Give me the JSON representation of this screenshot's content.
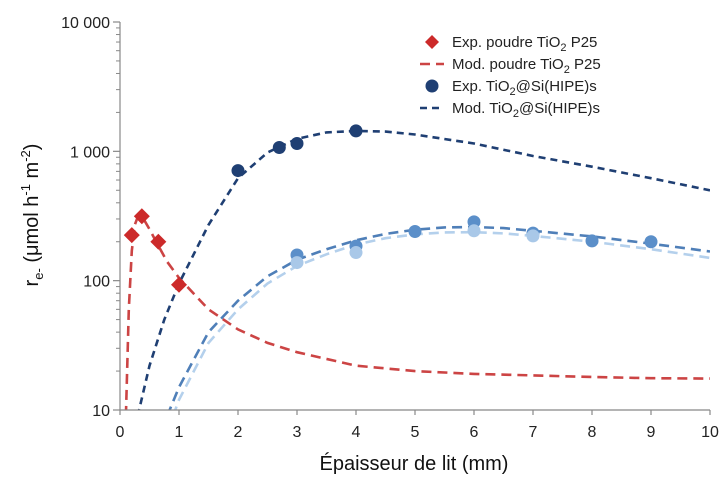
{
  "chart_data": {
    "type": "scatter",
    "title": "",
    "xlabel": "Épaisseur de lit (mm)",
    "ylabel": {
      "main": "r",
      "sub": "e-",
      "unit_open": " (μmol h",
      "sup1": "-1",
      "unit_mid": " m",
      "sup2": "-2",
      "unit_close": ")"
    },
    "xlim": [
      0,
      10
    ],
    "ylim": [
      10,
      10000
    ],
    "y_scale": "log",
    "x_ticks": [
      "0",
      "1",
      "2",
      "3",
      "4",
      "5",
      "6",
      "7",
      "8",
      "9",
      "10"
    ],
    "y_ticks": [
      {
        "value": 10,
        "label": "10"
      },
      {
        "value": 100,
        "label": "100"
      },
      {
        "value": 1000,
        "label": "1 000"
      },
      {
        "value": 10000,
        "label": "10 000"
      }
    ],
    "grid": false,
    "legend_position": "top-right",
    "legend": [
      {
        "kind": "marker",
        "shape": "diamond",
        "color": "#cc2a2a",
        "parts": [
          {
            "t": "Exp. poudre TiO"
          },
          {
            "t": "2",
            "sub": true
          },
          {
            "t": " P25"
          }
        ]
      },
      {
        "kind": "line",
        "color": "#cc4444",
        "dash": "long",
        "parts": [
          {
            "t": "Mod. poudre TiO"
          },
          {
            "t": "2",
            "sub": true
          },
          {
            "t": " P25"
          }
        ]
      },
      {
        "kind": "marker",
        "shape": "circle",
        "color": "#1f3f73",
        "parts": [
          {
            "t": "Exp. TiO"
          },
          {
            "t": "2",
            "sub": true
          },
          {
            "t": "@Si(HIPE)s"
          }
        ]
      },
      {
        "kind": "line",
        "color": "#1f3f73",
        "dash": "short",
        "parts": [
          {
            "t": "Mod. TiO"
          },
          {
            "t": "2",
            "sub": true
          },
          {
            "t": "@Si(HIPE)s"
          }
        ]
      }
    ],
    "series": [
      {
        "kind": "points",
        "shape": "diamond",
        "color": "#cc2a2a",
        "x": [
          0.2,
          0.37,
          0.65,
          1.0
        ],
        "y": [
          225,
          315,
          200,
          93
        ]
      },
      {
        "kind": "points",
        "shape": "circle",
        "color": "#1f3f73",
        "x": [
          2.0,
          2.7,
          3.0,
          4.0
        ],
        "y": [
          710,
          1070,
          1150,
          1440
        ]
      },
      {
        "kind": "points",
        "shape": "circle",
        "color": "#5b8fc9",
        "x": [
          3.0,
          4.0,
          5.0,
          6.0,
          7.0,
          8.0,
          9.0
        ],
        "y": [
          158,
          185,
          240,
          285,
          233,
          203,
          200
        ]
      },
      {
        "kind": "points",
        "shape": "circle",
        "color": "#a9c8e8",
        "x": [
          3.0,
          4.0,
          6.0,
          7.0
        ],
        "y": [
          138,
          165,
          243,
          222
        ]
      },
      {
        "kind": "curve",
        "color": "#cc4444",
        "dash": "long",
        "x": [
          0.1,
          0.15,
          0.2,
          0.25,
          0.3,
          0.35,
          0.4,
          0.5,
          0.6,
          0.8,
          1.0,
          1.5,
          2.0,
          2.5,
          3.0,
          4.0,
          5.0,
          6.0,
          7.0,
          8.0,
          9.0,
          10.0
        ],
        "y": [
          9,
          60,
          170,
          270,
          310,
          315,
          300,
          250,
          205,
          140,
          105,
          60,
          42,
          33,
          28,
          22,
          20,
          19,
          18.5,
          18,
          17.6,
          17.5
        ]
      },
      {
        "kind": "curve",
        "color": "#1f3f73",
        "dash": "short",
        "x": [
          0.3,
          0.5,
          0.75,
          1.0,
          1.5,
          2.0,
          2.5,
          3.0,
          3.5,
          4.0,
          4.5,
          5.0,
          6.0,
          7.0,
          8.0,
          9.0,
          10.0
        ],
        "y": [
          9,
          22,
          50,
          95,
          270,
          620,
          980,
          1250,
          1400,
          1440,
          1420,
          1350,
          1150,
          920,
          760,
          620,
          500
        ]
      },
      {
        "kind": "curve",
        "color": "#4f7fb8",
        "dash": "long",
        "x": [
          0.8,
          1.0,
          1.5,
          2.0,
          2.5,
          3.0,
          3.5,
          4.0,
          4.5,
          5.0,
          5.5,
          6.0,
          6.5,
          7.0,
          8.0,
          9.0,
          10.0
        ],
        "y": [
          9,
          15,
          40,
          70,
          108,
          145,
          175,
          205,
          230,
          248,
          258,
          260,
          255,
          243,
          220,
          193,
          168
        ]
      },
      {
        "kind": "curve",
        "color": "#b4d0ec",
        "dash": "long",
        "x": [
          0.9,
          1.0,
          1.5,
          2.0,
          2.5,
          3.0,
          3.5,
          4.0,
          4.5,
          5.0,
          5.5,
          6.0,
          6.5,
          7.0,
          8.0,
          9.0,
          10.0
        ],
        "y": [
          9,
          12,
          33,
          60,
          95,
          130,
          160,
          190,
          213,
          228,
          236,
          237,
          232,
          222,
          200,
          175,
          150
        ]
      }
    ]
  }
}
